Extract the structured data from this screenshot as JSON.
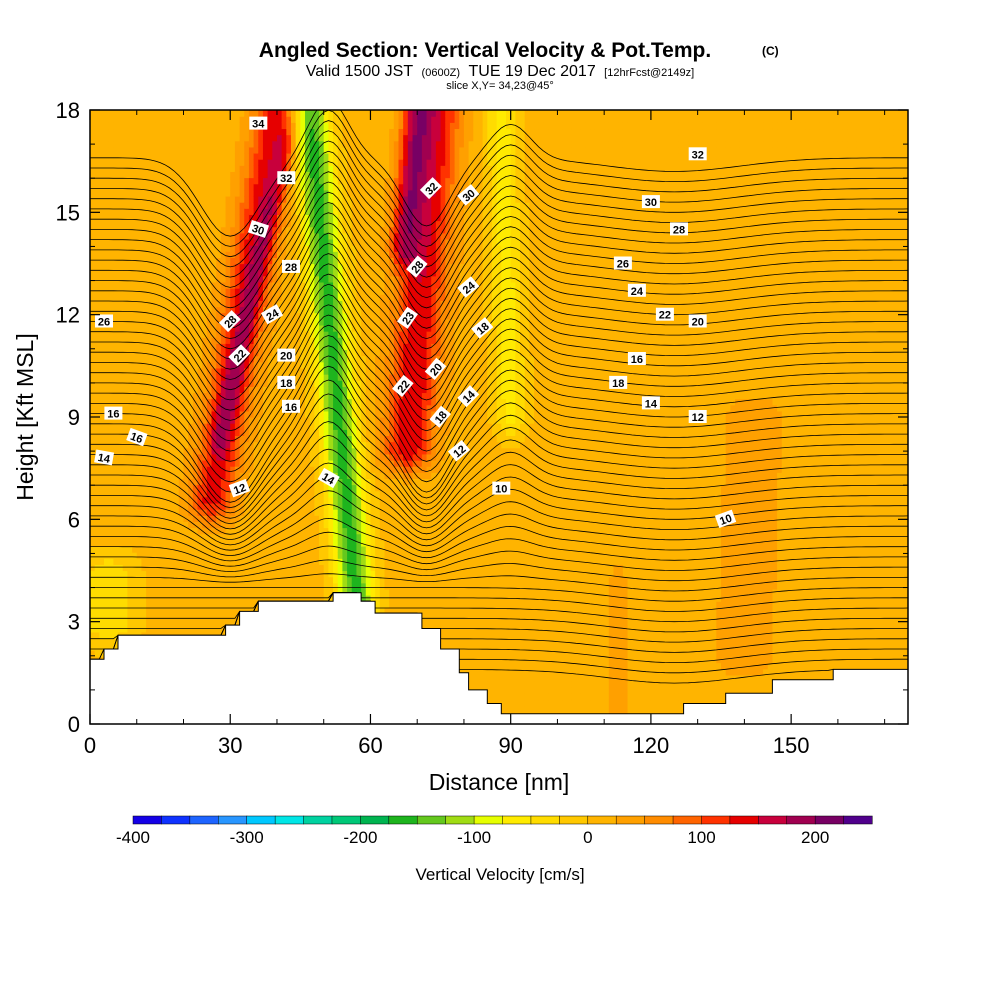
{
  "title": "Angled Section: Vertical Velocity & Pot.Temp.",
  "copyright_mark": "(C)",
  "subtitle": {
    "valid_prefix": "Valid 1500 JST",
    "utc_time": "(0600Z)",
    "valid_date": "TUE 19 Dec 2017",
    "forecast_info": "[12hrFcst@2149z]"
  },
  "slice_info": "slice X,Y= 34,23@45°",
  "colorbar": {
    "title": "Vertical Velocity [cm/s]",
    "tick_labels": [
      "-400",
      "-300",
      "-200",
      "-100",
      "0",
      "100",
      "200"
    ],
    "tick_values": [
      -400,
      -300,
      -200,
      -100,
      0,
      100,
      200
    ],
    "range": [
      -400,
      250
    ],
    "step": 25,
    "colors": [
      "#1400e6",
      "#0f32ff",
      "#1e64ff",
      "#2896ff",
      "#00c8ff",
      "#00e6e6",
      "#00d2a0",
      "#00c878",
      "#00b450",
      "#1eb41e",
      "#64c81e",
      "#a0dc14",
      "#e6ff00",
      "#ffeb00",
      "#ffdc00",
      "#ffc800",
      "#ffb400",
      "#ffa000",
      "#ff8c00",
      "#ff6400",
      "#ff3200",
      "#e60000",
      "#c8003c",
      "#a00050",
      "#780064",
      "#50008c"
    ]
  },
  "chart_data": {
    "type": "heatmap",
    "title": "Angled Section: Vertical Velocity & Pot.Temp.",
    "xlabel": "Distance [nm]",
    "ylabel": "Height [Kft MSL]",
    "xlim": [
      0,
      175
    ],
    "ylim": [
      0,
      18
    ],
    "x_ticks": [
      0,
      30,
      60,
      90,
      120,
      150
    ],
    "y_ticks": [
      0,
      3,
      6,
      9,
      12,
      15,
      18
    ],
    "fill_variable": "Vertical Velocity [cm/s]",
    "background_value": 10,
    "velocity_features": [
      {
        "x_bottom": 26,
        "x_top": 40,
        "y_min": 6.5,
        "y_max": 18,
        "half_width": 5,
        "peak": 130
      },
      {
        "x_bottom": 28,
        "x_top": 42,
        "y_min": 8.5,
        "y_max": 17,
        "half_width": 2.2,
        "peak": 60
      },
      {
        "x_bottom": 57,
        "x_top": 47,
        "y_min": 3.6,
        "y_max": 18,
        "half_width": 4,
        "peak": -170
      },
      {
        "x_bottom": 68,
        "x_top": 74,
        "y_min": 8,
        "y_max": 18,
        "half_width": 5.5,
        "peak": 140
      },
      {
        "x_bottom": 67,
        "x_top": 70,
        "y_min": 14,
        "y_max": 18,
        "half_width": 3,
        "peak": 110
      },
      {
        "x_bottom": 90,
        "x_top": 88,
        "y_min": 9,
        "y_max": 18,
        "half_width": 3.5,
        "peak": -70
      },
      {
        "x_bottom": 4,
        "x_top": 4,
        "y_min": 2.8,
        "y_max": 4.5,
        "half_width": 6,
        "peak": -50
      },
      {
        "x_bottom": 113,
        "x_top": 113,
        "y_min": 0.5,
        "y_max": 4,
        "half_width": 2,
        "peak": 40
      },
      {
        "x_bottom": 140,
        "x_top": 142,
        "y_min": 2,
        "y_max": 9,
        "half_width": 6,
        "peak": 40
      }
    ],
    "terrain": [
      [
        0,
        1.9
      ],
      [
        3,
        1.9
      ],
      [
        3,
        2.2
      ],
      [
        6,
        2.2
      ],
      [
        6,
        2.6
      ],
      [
        29,
        2.6
      ],
      [
        29,
        2.9
      ],
      [
        32,
        2.9
      ],
      [
        32,
        3.3
      ],
      [
        36,
        3.3
      ],
      [
        36,
        3.6
      ],
      [
        52,
        3.6
      ],
      [
        52,
        3.85
      ],
      [
        58,
        3.85
      ],
      [
        58,
        3.6
      ],
      [
        61,
        3.6
      ],
      [
        61,
        3.25
      ],
      [
        71,
        3.25
      ],
      [
        71,
        2.8
      ],
      [
        75,
        2.8
      ],
      [
        75,
        2.2
      ],
      [
        79,
        2.2
      ],
      [
        79,
        1.5
      ],
      [
        81,
        1.5
      ],
      [
        81,
        1.0
      ],
      [
        85,
        1.0
      ],
      [
        85,
        0.6
      ],
      [
        88,
        0.6
      ],
      [
        88,
        0.3
      ],
      [
        101,
        0.3
      ],
      [
        101,
        0.3
      ],
      [
        127,
        0.3
      ],
      [
        127,
        0.6
      ],
      [
        136,
        0.6
      ],
      [
        136,
        0.9
      ],
      [
        146,
        0.9
      ],
      [
        146,
        1.3
      ],
      [
        159,
        1.3
      ],
      [
        159,
        1.6
      ],
      [
        175,
        1.6
      ]
    ],
    "theta_contours": {
      "variable": "Potential Temperature",
      "levels": [
        10,
        10.5,
        11,
        11.5,
        12,
        12.5,
        13,
        13.5,
        14,
        14.5,
        15,
        15.5,
        16,
        16.5,
        17,
        17.5,
        18,
        18.5,
        19,
        19.5,
        20,
        20.5,
        21,
        21.5,
        22,
        22.5,
        23,
        23.5,
        24,
        24.5,
        25,
        25.5,
        26,
        26.5,
        27,
        27.5,
        28,
        28.5,
        29,
        29.5,
        30,
        30.5,
        31,
        31.5,
        32,
        32.5,
        33,
        33.5,
        34,
        34.5,
        35
      ]
    },
    "contour_labels": [
      {
        "text": "34",
        "x": 36,
        "y": 17.6,
        "angle": 0
      },
      {
        "text": "32",
        "x": 42,
        "y": 16.0,
        "angle": 0
      },
      {
        "text": "30",
        "x": 36,
        "y": 14.5,
        "angle": 18
      },
      {
        "text": "28",
        "x": 43,
        "y": 13.4,
        "angle": 0
      },
      {
        "text": "28",
        "x": 30,
        "y": 11.8,
        "angle": -45
      },
      {
        "text": "24",
        "x": 39,
        "y": 12.0,
        "angle": -30
      },
      {
        "text": "22",
        "x": 32,
        "y": 10.8,
        "angle": -45
      },
      {
        "text": "20",
        "x": 42,
        "y": 10.8,
        "angle": 0
      },
      {
        "text": "18",
        "x": 42,
        "y": 10.0,
        "angle": 0
      },
      {
        "text": "16",
        "x": 43,
        "y": 9.3,
        "angle": 0
      },
      {
        "text": "14",
        "x": 51,
        "y": 7.2,
        "angle": 30
      },
      {
        "text": "12",
        "x": 32,
        "y": 6.9,
        "angle": -20
      },
      {
        "text": "26",
        "x": 3,
        "y": 11.8,
        "angle": 0
      },
      {
        "text": "16",
        "x": 5,
        "y": 9.1,
        "angle": 0
      },
      {
        "text": "16",
        "x": 10,
        "y": 8.4,
        "angle": 20
      },
      {
        "text": "14",
        "x": 3,
        "y": 7.8,
        "angle": 10
      },
      {
        "text": "32",
        "x": 73,
        "y": 15.7,
        "angle": -45
      },
      {
        "text": "30",
        "x": 81,
        "y": 15.5,
        "angle": -40
      },
      {
        "text": "28",
        "x": 70,
        "y": 13.4,
        "angle": -50
      },
      {
        "text": "24",
        "x": 81,
        "y": 12.8,
        "angle": -40
      },
      {
        "text": "23",
        "x": 68,
        "y": 11.9,
        "angle": -55
      },
      {
        "text": "18",
        "x": 84,
        "y": 11.6,
        "angle": -40
      },
      {
        "text": "22",
        "x": 67,
        "y": 9.9,
        "angle": -50
      },
      {
        "text": "20",
        "x": 74,
        "y": 10.4,
        "angle": -50
      },
      {
        "text": "14",
        "x": 81,
        "y": 9.6,
        "angle": -45
      },
      {
        "text": "18",
        "x": 75,
        "y": 9.0,
        "angle": -50
      },
      {
        "text": "12",
        "x": 79,
        "y": 8.0,
        "angle": -40
      },
      {
        "text": "10",
        "x": 88,
        "y": 6.9,
        "angle": 0
      },
      {
        "text": "32",
        "x": 130,
        "y": 16.7,
        "angle": 0
      },
      {
        "text": "30",
        "x": 120,
        "y": 15.3,
        "angle": 0
      },
      {
        "text": "28",
        "x": 126,
        "y": 14.5,
        "angle": 0
      },
      {
        "text": "26",
        "x": 114,
        "y": 13.5,
        "angle": 0
      },
      {
        "text": "24",
        "x": 117,
        "y": 12.7,
        "angle": 0
      },
      {
        "text": "22",
        "x": 123,
        "y": 12.0,
        "angle": 0
      },
      {
        "text": "20",
        "x": 130,
        "y": 11.8,
        "angle": 0
      },
      {
        "text": "16",
        "x": 117,
        "y": 10.7,
        "angle": 0
      },
      {
        "text": "18",
        "x": 113,
        "y": 10.0,
        "angle": 0
      },
      {
        "text": "14",
        "x": 120,
        "y": 9.4,
        "angle": 0
      },
      {
        "text": "12",
        "x": 130,
        "y": 9.0,
        "angle": 0
      },
      {
        "text": "10",
        "x": 136,
        "y": 6.0,
        "angle": -20
      }
    ]
  }
}
